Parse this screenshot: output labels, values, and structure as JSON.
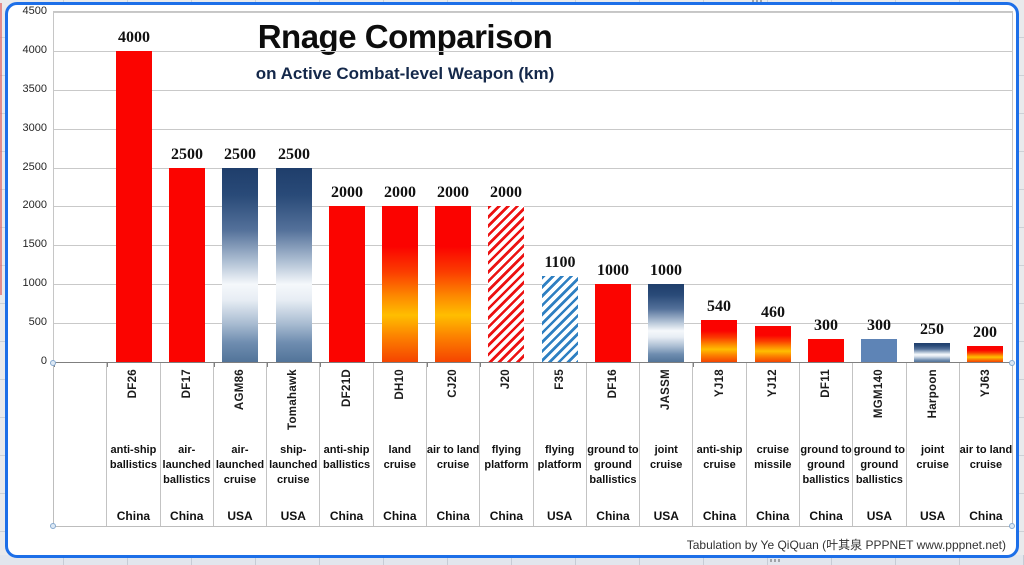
{
  "footer": "Tabulation by Ye QiQuan (叶其泉 PPPNET www.pppnet.net)",
  "colors": {
    "frame_border": "#1D6FE8",
    "solid_red": "#FB0400",
    "flat_blue": "#5E84B6",
    "hatch_red": "#EC1212",
    "hatch_blue": "#2F80C2",
    "blue_gradient_dark": "#1F3E6B",
    "blue_gradient_light": "#F5F8FB",
    "fire_gradient_yellow": "#FFBE00",
    "gridline": "#C9C9C9",
    "axis_line": "#7F7F7F"
  },
  "chart_data": {
    "type": "bar",
    "title": "Rnage Comparison",
    "subtitle": "on Active Combat-level Weapon (km)",
    "xlabel": "",
    "ylabel": "",
    "ylim": [
      0,
      4500
    ],
    "yticks": [
      0,
      500,
      1000,
      1500,
      2000,
      2500,
      3000,
      3500,
      4000,
      4500
    ],
    "grid": true,
    "legend": "none",
    "leading_empty_category": true,
    "bars": [
      {
        "name": "DF26",
        "value": 4000,
        "style": "solid-red",
        "category": "anti-ship ballistics",
        "country": "China"
      },
      {
        "name": "DF17",
        "value": 2500,
        "style": "solid-red",
        "category": "air-launched ballistics",
        "country": "China"
      },
      {
        "name": "AGM86",
        "value": 2500,
        "style": "blue-gradient",
        "category": "air-launched cruise",
        "country": "USA"
      },
      {
        "name": "Tomahawk",
        "value": 2500,
        "style": "blue-gradient",
        "category": "ship-launched cruise",
        "country": "USA"
      },
      {
        "name": "DF21D",
        "value": 2000,
        "style": "solid-red",
        "category": "anti-ship ballistics",
        "country": "China"
      },
      {
        "name": "DH10",
        "value": 2000,
        "style": "fire-gradient",
        "category": "land cruise",
        "country": "China"
      },
      {
        "name": "CJ20",
        "value": 2000,
        "style": "fire-gradient",
        "category": "air to land cruise",
        "country": "China"
      },
      {
        "name": "J20",
        "value": 2000,
        "style": "hatch-red",
        "category": "flying platform",
        "country": "China"
      },
      {
        "name": "F35",
        "value": 1100,
        "style": "hatch-blue",
        "category": "flying platform",
        "country": "USA"
      },
      {
        "name": "DF16",
        "value": 1000,
        "style": "solid-red",
        "category": "ground to ground ballistics",
        "country": "China"
      },
      {
        "name": "JASSM",
        "value": 1000,
        "style": "blue-gradient",
        "category": "joint cruise",
        "country": "USA"
      },
      {
        "name": "YJ18",
        "value": 540,
        "style": "fire-gradient",
        "category": "anti-ship cruise",
        "country": "China"
      },
      {
        "name": "YJ12",
        "value": 460,
        "style": "fire-gradient",
        "category": "cruise missile",
        "country": "China"
      },
      {
        "name": "DF11",
        "value": 300,
        "style": "solid-red",
        "category": "ground to ground ballistics",
        "country": "China"
      },
      {
        "name": "MGM140",
        "value": 300,
        "style": "flat-blue",
        "category": "ground to ground ballistics",
        "country": "USA"
      },
      {
        "name": "Harpoon",
        "value": 250,
        "style": "blue-gradient",
        "category": "joint cruise",
        "country": "USA"
      },
      {
        "name": "YJ63",
        "value": 200,
        "style": "fire-gradient",
        "category": "air to land cruise",
        "country": "China"
      }
    ]
  }
}
